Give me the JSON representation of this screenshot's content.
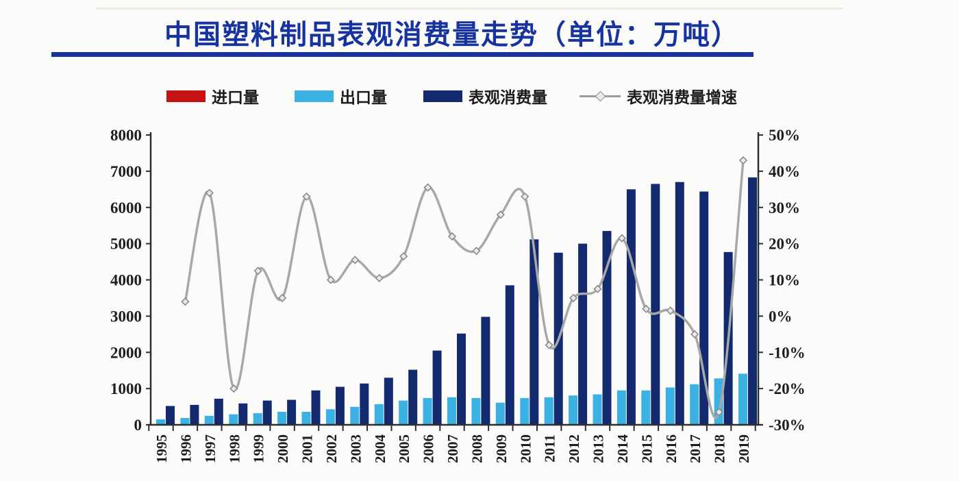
{
  "title": {
    "text": "中国塑料制品表观消费量走势（单位：万吨）",
    "color": "#1733a0",
    "underline_color": "#1733a0"
  },
  "legend": [
    {
      "label": "进口量",
      "swatch": "bar",
      "color": "#c61212"
    },
    {
      "label": "出口量",
      "swatch": "bar",
      "color": "#3cb1e4"
    },
    {
      "label": "表观消费量",
      "swatch": "bar",
      "color": "#132a6e"
    },
    {
      "label": "表观消费量增速",
      "swatch": "line",
      "color": "#9d9d9d"
    }
  ],
  "chart_data": {
    "type": "bar",
    "title": "中国塑料制品表观消费量走势（单位：万吨）",
    "categories": [
      "1995",
      "1996",
      "1997",
      "1998",
      "1999",
      "2000",
      "2001",
      "2002",
      "2003",
      "2004",
      "2005",
      "2006",
      "2007",
      "2008",
      "2009",
      "2010",
      "2011",
      "2012",
      "2013",
      "2014",
      "2015",
      "2016",
      "2017",
      "2018",
      "2019"
    ],
    "series": [
      {
        "name": "进口量",
        "type": "bar",
        "axis": "left",
        "color": "#c61212",
        "values": null
      },
      {
        "name": "出口量",
        "type": "bar",
        "axis": "left",
        "color": "#3cb1e4",
        "values": [
          150,
          190,
          250,
          290,
          320,
          360,
          360,
          430,
          495,
          570,
          670,
          740,
          760,
          740,
          610,
          740,
          760,
          810,
          840,
          950,
          950,
          1030,
          1120,
          1280,
          1410
        ]
      },
      {
        "name": "表观消费量",
        "type": "bar",
        "axis": "left",
        "color": "#132a6e",
        "values": [
          520,
          550,
          720,
          590,
          670,
          690,
          950,
          1050,
          1140,
          1300,
          1520,
          2050,
          2520,
          2980,
          3850,
          5120,
          4750,
          5000,
          5350,
          6500,
          6650,
          6700,
          6440,
          4770,
          6830
        ]
      },
      {
        "name": "表观消费量增速",
        "type": "line",
        "axis": "right",
        "unit": "%",
        "color": "#a8a8a8",
        "values": [
          null,
          4,
          34,
          -20,
          12.5,
          5,
          33,
          10,
          15.5,
          10.5,
          16.5,
          35.5,
          22,
          18,
          28,
          33,
          -8,
          5,
          7.5,
          21.5,
          2,
          1.5,
          -5,
          -26.5,
          43
        ]
      }
    ],
    "left_axis": {
      "min": 0,
      "max": 8000,
      "step": 1000,
      "tick_labels": [
        "0",
        "1000",
        "2000",
        "3000",
        "4000",
        "5000",
        "6000",
        "7000",
        "8000"
      ]
    },
    "right_axis": {
      "min": -30,
      "max": 50,
      "step": 10,
      "tick_labels": [
        "-30%",
        "-20%",
        "-10%",
        "0%",
        "10%",
        "20%",
        "30%",
        "40%",
        "50%"
      ]
    },
    "grid": false,
    "legend_position": "top"
  }
}
